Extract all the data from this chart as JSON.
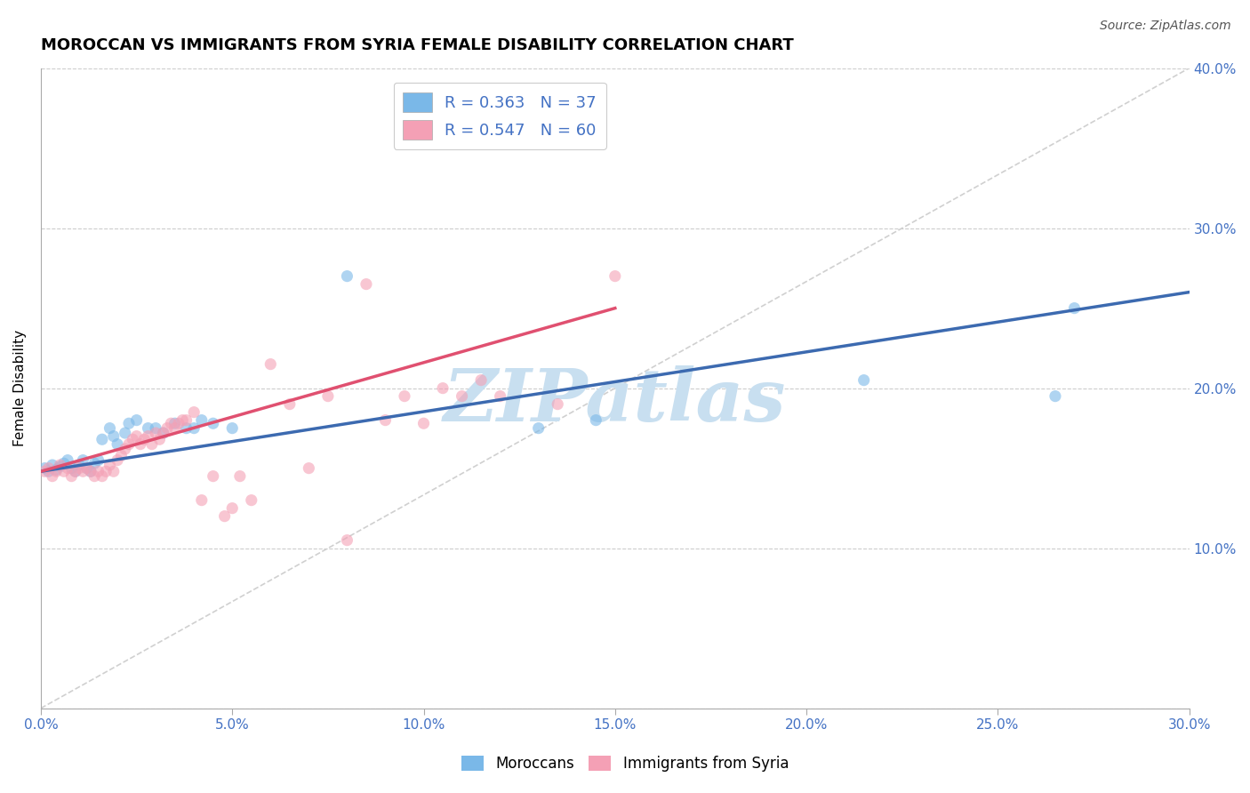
{
  "title": "MOROCCAN VS IMMIGRANTS FROM SYRIA FEMALE DISABILITY CORRELATION CHART",
  "source": "Source: ZipAtlas.com",
  "ylabel": "Female Disability",
  "xlim": [
    0.0,
    0.3
  ],
  "ylim": [
    0.0,
    0.4
  ],
  "xticks": [
    0.0,
    0.05,
    0.1,
    0.15,
    0.2,
    0.25,
    0.3
  ],
  "yticks": [
    0.0,
    0.1,
    0.2,
    0.3,
    0.4
  ],
  "xtick_labels": [
    "0.0%",
    "5.0%",
    "10.0%",
    "15.0%",
    "20.0%",
    "25.0%",
    "30.0%"
  ],
  "ytick_labels": [
    "",
    "10.0%",
    "20.0%",
    "30.0%",
    "40.0%"
  ],
  "watermark": "ZIPatlas",
  "watermark_color": "#c8dff0",
  "blue_scatter_x": [
    0.001,
    0.002,
    0.003,
    0.004,
    0.005,
    0.006,
    0.007,
    0.008,
    0.009,
    0.01,
    0.011,
    0.012,
    0.013,
    0.014,
    0.015,
    0.016,
    0.018,
    0.019,
    0.02,
    0.022,
    0.023,
    0.025,
    0.028,
    0.03,
    0.032,
    0.035,
    0.038,
    0.04,
    0.042,
    0.045,
    0.05,
    0.08,
    0.13,
    0.145,
    0.215,
    0.265,
    0.27
  ],
  "blue_scatter_y": [
    0.15,
    0.148,
    0.152,
    0.149,
    0.151,
    0.153,
    0.155,
    0.15,
    0.148,
    0.152,
    0.155,
    0.15,
    0.148,
    0.153,
    0.155,
    0.168,
    0.175,
    0.17,
    0.165,
    0.172,
    0.178,
    0.18,
    0.175,
    0.175,
    0.172,
    0.178,
    0.175,
    0.175,
    0.18,
    0.178,
    0.175,
    0.27,
    0.175,
    0.18,
    0.205,
    0.195,
    0.25
  ],
  "pink_scatter_x": [
    0.001,
    0.002,
    0.003,
    0.004,
    0.005,
    0.006,
    0.007,
    0.008,
    0.009,
    0.01,
    0.011,
    0.012,
    0.013,
    0.014,
    0.015,
    0.016,
    0.017,
    0.018,
    0.019,
    0.02,
    0.021,
    0.022,
    0.023,
    0.024,
    0.025,
    0.026,
    0.027,
    0.028,
    0.029,
    0.03,
    0.031,
    0.032,
    0.033,
    0.034,
    0.035,
    0.036,
    0.037,
    0.038,
    0.04,
    0.042,
    0.045,
    0.048,
    0.05,
    0.052,
    0.055,
    0.06,
    0.065,
    0.07,
    0.075,
    0.08,
    0.085,
    0.09,
    0.095,
    0.1,
    0.105,
    0.11,
    0.115,
    0.12,
    0.135,
    0.15
  ],
  "pink_scatter_y": [
    0.148,
    0.15,
    0.145,
    0.148,
    0.152,
    0.148,
    0.15,
    0.145,
    0.148,
    0.15,
    0.148,
    0.15,
    0.148,
    0.145,
    0.148,
    0.145,
    0.148,
    0.152,
    0.148,
    0.155,
    0.158,
    0.162,
    0.165,
    0.168,
    0.17,
    0.165,
    0.168,
    0.17,
    0.165,
    0.172,
    0.168,
    0.172,
    0.175,
    0.178,
    0.175,
    0.178,
    0.18,
    0.18,
    0.185,
    0.13,
    0.145,
    0.12,
    0.125,
    0.145,
    0.13,
    0.215,
    0.19,
    0.15,
    0.195,
    0.105,
    0.265,
    0.18,
    0.195,
    0.178,
    0.2,
    0.195,
    0.205,
    0.195,
    0.19,
    0.27
  ],
  "blue_line_x": [
    0.0,
    0.3
  ],
  "blue_line_y": [
    0.148,
    0.26
  ],
  "pink_line_x": [
    0.0,
    0.15
  ],
  "pink_line_y": [
    0.148,
    0.25
  ],
  "diag_line_x": [
    0.0,
    0.3
  ],
  "diag_line_y": [
    0.0,
    0.4
  ],
  "blue_color": "#7ab8e8",
  "pink_color": "#f4a0b5",
  "blue_line_color": "#3c6ab0",
  "pink_line_color": "#e05070",
  "diag_line_color": "#d0d0d0",
  "title_fontsize": 13,
  "axis_label_fontsize": 11,
  "tick_fontsize": 11,
  "source_fontsize": 10
}
